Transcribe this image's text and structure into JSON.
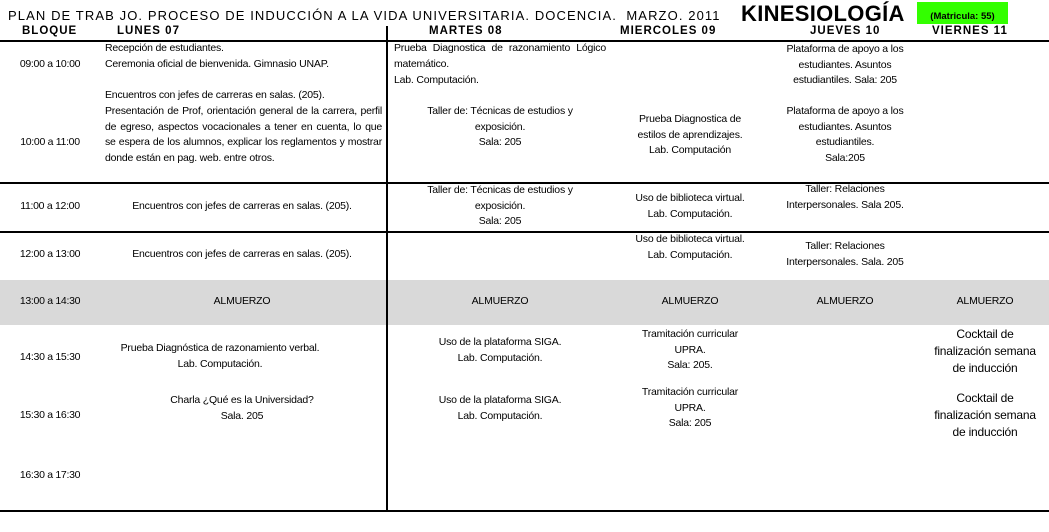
{
  "header": {
    "title": "PLAN DE TRAB JO. PROCESO DE INDUCCIÓN A LA VIDA UNIVERSITARIA. DOCENCIA.  MARZO. 2011",
    "career": "KINESIOLOGÍA",
    "enrollment": "(Matricula: 55)",
    "enrollment_bg": "#33ff00"
  },
  "columns": [
    "BLOQUE",
    "LUNES 07",
    "MARTES 08",
    "MIERCOLES 09",
    "JUEVES 10",
    "VIERNES  11"
  ],
  "times": [
    "09:00 a 10:00",
    "10:00 a 11:00",
    "11:00 a 12:00",
    "12:00  a  13:00",
    "13:00 a 14:30",
    "14:30 a 15:30",
    "15:30 a 16:30",
    "16:30 a 17:30"
  ],
  "lunch_bg": "#d9d9d9",
  "lunes": {
    "r1": "Recepción de estudiantes.\nCeremonia oficial de bienvenida. Gimnasio UNAP.",
    "r2a": "Encuentros con jefes de carreras en salas. (205).",
    "r2b": "Presentación de Prof, orientación general de la carrera, perfil de egreso, aspectos vocacionales a tener en cuenta, lo que se espera de los alumnos, explicar los reglamentos y mostrar donde están en pag. web. entre otros.",
    "r3": "Encuentros con jefes de carreras en salas. (205).",
    "r4": "Encuentros con jefes de carreras en salas. (205).",
    "lunch": "ALMUERZO",
    "r6": "Prueba Diagnóstica de razonamiento verbal.\nLab. Computación.",
    "r7": "Charla  ¿Qué es la Universidad?\nSala. 205"
  },
  "martes": {
    "r1": "Prueba Diagnostica de razonamiento Lógico matemático.",
    "r1b": "Lab. Computación.",
    "r2": "Taller de: Técnicas de estudios y\nexposición.\nSala: 205",
    "r3": "Taller de: Técnicas de estudios y\nexposición.\nSala: 205",
    "lunch": "ALMUERZO",
    "r6": "Uso de la plataforma SIGA.\nLab. Computación.",
    "r7": "Uso de la plataforma SIGA.\nLab. Computación."
  },
  "miercoles": {
    "r2": "Prueba Diagnostica de\nestilos de aprendizajes.\nLab. Computación",
    "r3": "Uso de biblioteca virtual.\nLab. Computación.",
    "r4": "Uso de biblioteca virtual.\nLab. Computación.",
    "lunch": "ALMUERZO",
    "r6": "Tramitación curricular\nUPRA.\nSala: 205.",
    "r7": "Tramitación curricular\nUPRA.\nSala: 205"
  },
  "jueves": {
    "r1": "Plataforma de apoyo a los\nestudiantes. Asuntos\nestudiantiles. Sala: 205",
    "r2": "Plataforma de apoyo a los\nestudiantes. Asuntos\nestudiantiles.\nSala:205",
    "r3": "Taller: Relaciones\nInterpersonales. Sala 205.",
    "r4": "Taller: Relaciones\nInterpersonales. Sala. 205",
    "lunch": "ALMUERZO"
  },
  "viernes": {
    "lunch": "ALMUERZO",
    "r6": "Cocktail de\nfinalización semana\nde inducción",
    "r7": "Cocktail de\nfinalización semana\nde inducción"
  }
}
